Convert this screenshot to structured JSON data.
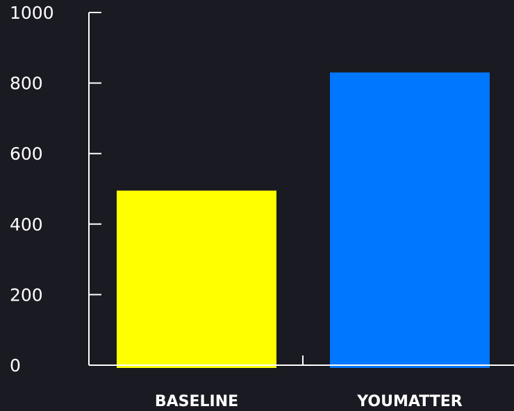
{
  "chart_data": {
    "type": "bar",
    "categories": [
      "BASELINE",
      "YOUMATTER"
    ],
    "values": [
      495,
      830
    ],
    "bar_colors": [
      "#ffff00",
      "#0077ff"
    ],
    "ylim": [
      0,
      1000
    ],
    "yticks": [
      0,
      200,
      400,
      600,
      800,
      1000
    ],
    "title": "",
    "xlabel": "",
    "ylabel": "",
    "grid": false,
    "legend": "none"
  },
  "colors": {
    "background": "#1a1a22",
    "axis": "#ffffff",
    "text": "#ffffff"
  }
}
